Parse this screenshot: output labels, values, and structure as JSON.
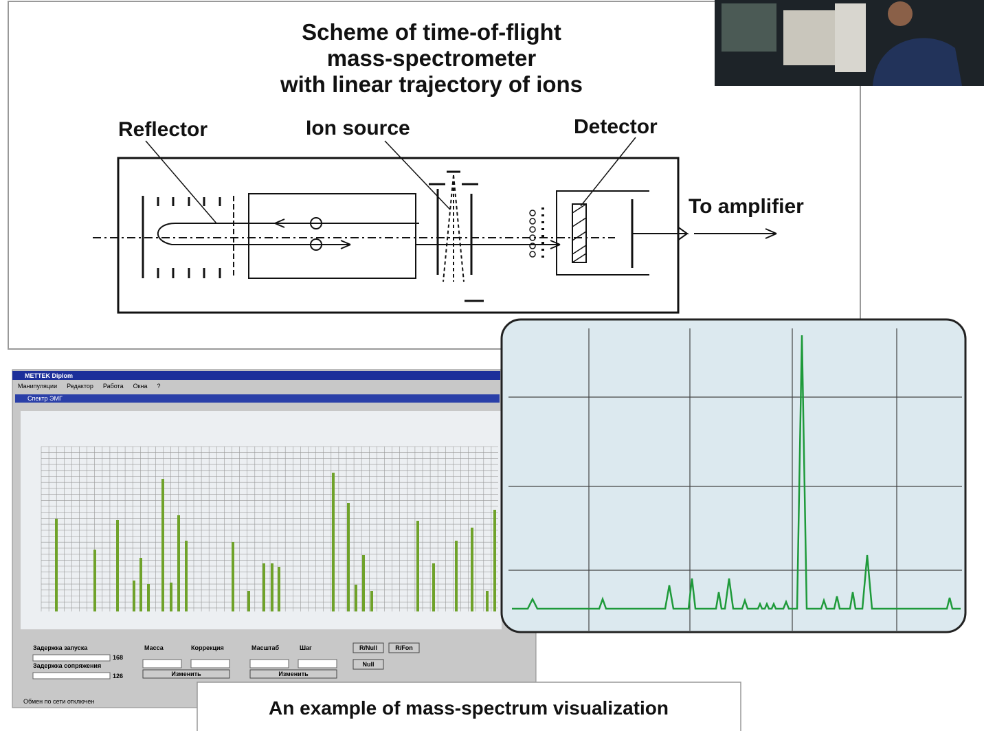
{
  "scheme": {
    "title_lines": [
      "Scheme of time-of-flight",
      "mass-spectrometer",
      "with linear trajectory of ions"
    ],
    "labels": {
      "reflector": "Reflector",
      "ion_source": "Ion source",
      "detector": "Detector",
      "output": "To amplifier"
    }
  },
  "software": {
    "window_title": "METTEK Diplom",
    "menu": [
      "Манипуляции",
      "Редактор",
      "Работа",
      "Окна",
      "?"
    ],
    "panel_title": "Спектр ЭМГ",
    "bars": [
      135,
      90,
      133,
      45,
      78,
      40,
      193,
      42,
      140,
      103,
      101,
      30,
      70,
      70,
      65,
      202,
      158,
      39,
      82,
      30,
      132,
      70,
      103,
      122,
      30,
      148
    ],
    "controls": {
      "start_delay": "Задержка запуска",
      "start_delay_value": "168",
      "sync_delay": "Задержка сопряжения",
      "sync_delay_value": "126",
      "mass": "Масса",
      "correction": "Коррекция",
      "scale": "Масштаб",
      "step": "Шаг",
      "apply_1": "Изменить",
      "apply_2": "Изменить",
      "btn_rnull": "R/Null",
      "btn_rfon": "R/Fon",
      "btn_null": "Null"
    },
    "status": "Обмен по сети отключен"
  },
  "caption": "An example of mass-spectrum visualization"
}
